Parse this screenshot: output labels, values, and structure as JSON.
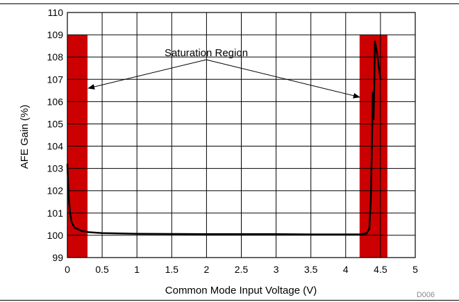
{
  "chart_data": {
    "type": "line",
    "xlabel": "Common Mode Input Voltage (V)",
    "ylabel": "AFE Gain (%)",
    "xlim": [
      0,
      5
    ],
    "ylim": [
      99,
      110
    ],
    "x_ticks": [
      "0",
      "0.5",
      "1",
      "1.5",
      "2",
      "2.5",
      "3",
      "3.5",
      "4",
      "4.5",
      "5"
    ],
    "y_ticks": [
      "99",
      "100",
      "101",
      "102",
      "103",
      "104",
      "105",
      "106",
      "107",
      "108",
      "109",
      "110"
    ],
    "grid": true,
    "series": [
      {
        "color": "#000000",
        "points": [
          [
            0.0,
            103.2
          ],
          [
            0.02,
            101.6
          ],
          [
            0.04,
            101.0
          ],
          [
            0.06,
            100.6
          ],
          [
            0.1,
            100.35
          ],
          [
            0.2,
            100.2
          ],
          [
            0.3,
            100.14
          ],
          [
            0.5,
            100.1
          ],
          [
            1.0,
            100.07
          ],
          [
            1.5,
            100.06
          ],
          [
            2.0,
            100.05
          ],
          [
            2.5,
            100.05
          ],
          [
            3.0,
            100.05
          ],
          [
            3.5,
            100.04
          ],
          [
            4.0,
            100.04
          ],
          [
            4.2,
            100.04
          ],
          [
            4.3,
            100.08
          ],
          [
            4.34,
            100.3
          ],
          [
            4.36,
            101.5
          ],
          [
            4.38,
            104.5
          ],
          [
            4.39,
            106.4
          ],
          [
            4.4,
            105.2
          ],
          [
            4.41,
            106.5
          ],
          [
            4.42,
            108.7
          ],
          [
            4.45,
            108.2
          ],
          [
            4.5,
            107.0
          ]
        ]
      }
    ],
    "regions": [
      {
        "x_range": [
          0,
          0.29
        ],
        "y_range": [
          99,
          109
        ],
        "color": "#cc0000"
      },
      {
        "x_range": [
          4.2,
          4.6
        ],
        "y_range": [
          99,
          109
        ],
        "color": "#cc0000"
      }
    ],
    "annotations": [
      {
        "text": "Saturation Region",
        "arrows_to": [
          [
            0.3,
            106.6
          ],
          [
            4.2,
            106.2
          ]
        ]
      }
    ],
    "footnote": "D006"
  }
}
